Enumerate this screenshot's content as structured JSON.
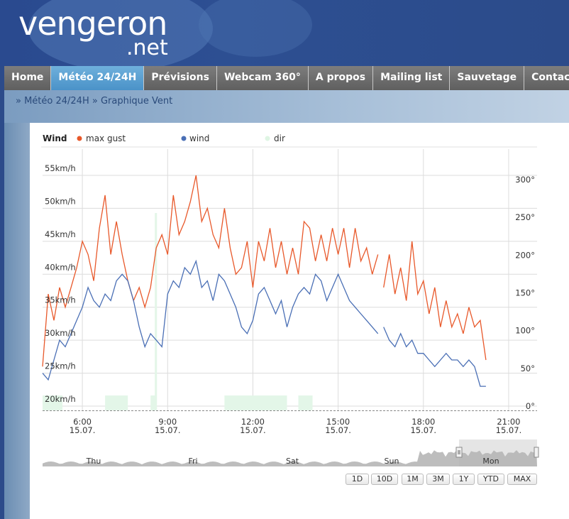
{
  "site": {
    "logo_main": "vengeron",
    "logo_suffix": ".net"
  },
  "nav": {
    "items": [
      {
        "label": "Home",
        "active": false
      },
      {
        "label": "Météo 24/24H",
        "active": true
      },
      {
        "label": "Prévisions",
        "active": false
      },
      {
        "label": "Webcam 360°",
        "active": false
      },
      {
        "label": "A propos",
        "active": false
      },
      {
        "label": "Mailing list",
        "active": false
      },
      {
        "label": "Sauvetage",
        "active": false
      },
      {
        "label": "Contact",
        "active": false
      }
    ]
  },
  "breadcrumb": {
    "text": "» Météo 24/24H » Graphique Vent"
  },
  "range_buttons": [
    "1D",
    "10D",
    "1M",
    "3M",
    "1Y",
    "YTD",
    "MAX"
  ],
  "navigator": {
    "days": [
      "Thu",
      "Fri",
      "Sat",
      "Sun",
      "Mon"
    ]
  },
  "colors": {
    "gust": "#e8582a",
    "wind": "#4a6fb5",
    "dir": "#e3f6e8"
  },
  "chart_data": {
    "type": "line",
    "title": "Wind",
    "legend": [
      "max gust",
      "wind",
      "dir"
    ],
    "x_ticks": [
      {
        "time": "6:00",
        "date": "15.07."
      },
      {
        "time": "9:00",
        "date": "15.07."
      },
      {
        "time": "12:00",
        "date": "15.07."
      },
      {
        "time": "15:00",
        "date": "15.07."
      },
      {
        "time": "18:00",
        "date": "15.07."
      },
      {
        "time": "21:00",
        "date": "15.07."
      }
    ],
    "x_range_hours": [
      4.6,
      22.0
    ],
    "y_left_ticks": [
      "20km/h",
      "25km/h",
      "30km/h",
      "35km/h",
      "40km/h",
      "45km/h",
      "50km/h",
      "55km/h"
    ],
    "y_left_range": [
      20,
      55
    ],
    "y_right_ticks": [
      "0°",
      "50°",
      "100°",
      "150°",
      "200°",
      "250°",
      "300°"
    ],
    "y_right_range": [
      0,
      300
    ],
    "series": [
      {
        "name": "max gust",
        "x_hours": [
          4.6,
          4.8,
          5.0,
          5.2,
          5.4,
          5.6,
          5.8,
          6.0,
          6.2,
          6.4,
          6.6,
          6.8,
          7.0,
          7.2,
          7.4,
          7.6,
          7.8,
          8.0,
          8.2,
          8.4,
          8.6,
          8.8,
          9.0,
          9.2,
          9.4,
          9.6,
          9.8,
          10.0,
          10.2,
          10.4,
          10.6,
          10.8,
          11.0,
          11.2,
          11.4,
          11.6,
          11.8,
          12.0,
          12.2,
          12.4,
          12.6,
          12.8,
          13.0,
          13.2,
          13.4,
          13.6,
          13.8,
          14.0,
          14.2,
          14.4,
          14.6,
          14.8,
          15.0,
          15.2,
          15.4,
          15.6,
          15.8,
          16.0,
          16.2,
          16.4,
          16.6,
          16.8,
          17.0,
          17.2,
          17.4,
          17.6,
          17.8,
          18.0,
          18.2,
          18.4,
          18.6,
          18.8,
          19.0,
          19.2,
          19.4,
          19.6,
          19.8,
          20.0,
          20.2
        ],
        "values": [
          26,
          37,
          33,
          38,
          35,
          38,
          41,
          45,
          43,
          39,
          47,
          52,
          43,
          48,
          43,
          39,
          36,
          38,
          35,
          38,
          44,
          46,
          43,
          52,
          46,
          48,
          51,
          55,
          48,
          50,
          46,
          44,
          50,
          44,
          40,
          41,
          45,
          38,
          45,
          42,
          47,
          41,
          45,
          40,
          44,
          40,
          48,
          47,
          42,
          46,
          42,
          47,
          43,
          47,
          41,
          47,
          42,
          44,
          40,
          43,
          38,
          43,
          37,
          41,
          36,
          45,
          37,
          39,
          34,
          38,
          32,
          36,
          32,
          34,
          31,
          35,
          32,
          33,
          27
        ],
        "gaps_after_index": [
          59
        ]
      },
      {
        "name": "wind",
        "x_hours": [
          4.6,
          4.8,
          5.0,
          5.2,
          5.4,
          5.6,
          5.8,
          6.0,
          6.2,
          6.4,
          6.6,
          6.8,
          7.0,
          7.2,
          7.4,
          7.6,
          7.8,
          8.0,
          8.2,
          8.4,
          8.6,
          8.8,
          9.0,
          9.2,
          9.4,
          9.6,
          9.8,
          10.0,
          10.2,
          10.4,
          10.6,
          10.8,
          11.0,
          11.2,
          11.4,
          11.6,
          11.8,
          12.0,
          12.2,
          12.4,
          12.6,
          12.8,
          13.0,
          13.2,
          13.4,
          13.6,
          13.8,
          14.0,
          14.2,
          14.4,
          14.6,
          14.8,
          15.0,
          15.2,
          15.4,
          15.6,
          15.8,
          16.0,
          16.2,
          16.4,
          16.6,
          16.8,
          17.0,
          17.2,
          17.4,
          17.6,
          17.8,
          18.0,
          18.2,
          18.4,
          18.6,
          18.8,
          19.0,
          19.2,
          19.4,
          19.6,
          19.8,
          20.0,
          20.2
        ],
        "values": [
          25,
          24,
          27,
          30,
          29,
          31,
          33,
          35,
          38,
          36,
          35,
          37,
          36,
          39,
          40,
          39,
          36,
          32,
          29,
          31,
          30,
          29,
          37,
          39,
          38,
          41,
          40,
          42,
          38,
          39,
          36,
          40,
          39,
          37,
          35,
          32,
          31,
          33,
          37,
          38,
          36,
          34,
          36,
          32,
          35,
          37,
          38,
          37,
          40,
          39,
          36,
          38,
          40,
          38,
          36,
          35,
          34,
          33,
          32,
          31,
          32,
          30,
          29,
          31,
          29,
          30,
          28,
          28,
          27,
          26,
          27,
          28,
          27,
          27,
          26,
          27,
          26,
          23,
          23
        ],
        "gaps_after_index": [
          59
        ]
      }
    ]
  }
}
